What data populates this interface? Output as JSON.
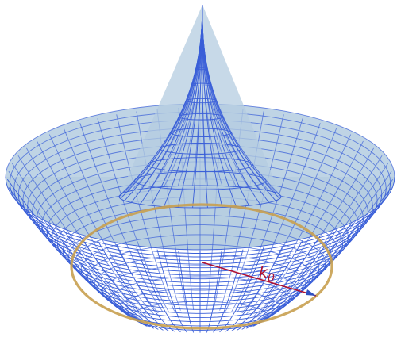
{
  "figure": {
    "label_symbol": "k",
    "label_subscript": "0"
  },
  "colors": {
    "surface_fill": "#b4cce0",
    "mesh_line": "#3a5fd8",
    "ring": "#c8a050",
    "vector": "#b01030",
    "vector_tail": "#3050c0"
  },
  "icons": {
    "arrow": "arrow-head-icon"
  }
}
